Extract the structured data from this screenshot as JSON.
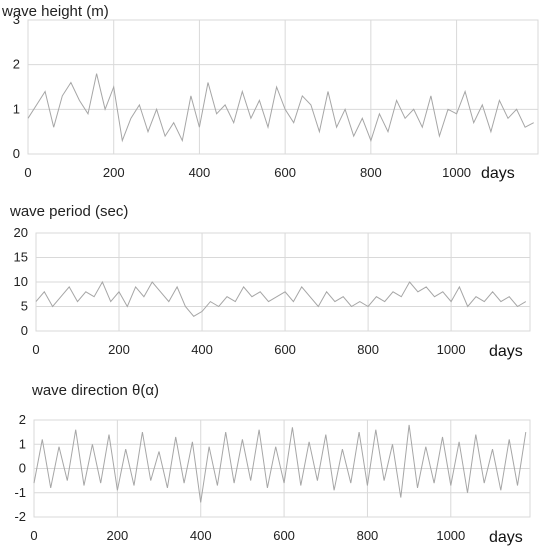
{
  "chart_data": [
    {
      "type": "line",
      "title": "wave height (m)",
      "xlabel": "days",
      "ylabel": "",
      "xlim": [
        0,
        1190
      ],
      "ylim": [
        0,
        3
      ],
      "x_ticks": [
        0,
        200,
        400,
        600,
        800,
        1000
      ],
      "y_ticks": [
        0,
        1,
        2,
        3
      ],
      "grid": true,
      "legend": "none",
      "color": "#a6a6a6",
      "x": [
        0,
        20,
        40,
        60,
        80,
        100,
        120,
        140,
        160,
        180,
        200,
        220,
        240,
        260,
        280,
        300,
        320,
        340,
        360,
        380,
        400,
        420,
        440,
        460,
        480,
        500,
        520,
        540,
        560,
        580,
        600,
        620,
        640,
        660,
        680,
        700,
        720,
        740,
        760,
        780,
        800,
        820,
        840,
        860,
        880,
        900,
        920,
        940,
        960,
        980,
        1000,
        1020,
        1040,
        1060,
        1080,
        1100,
        1120,
        1140,
        1160,
        1180
      ],
      "series": [
        {
          "values": [
            0.8,
            1.1,
            1.4,
            0.6,
            1.3,
            1.6,
            1.2,
            0.9,
            1.8,
            1.0,
            1.5,
            0.3,
            0.8,
            1.1,
            0.5,
            1.0,
            0.4,
            0.7,
            0.3,
            1.3,
            0.6,
            1.6,
            0.9,
            1.1,
            0.7,
            1.4,
            0.8,
            1.2,
            0.6,
            1.5,
            1.0,
            0.7,
            1.3,
            1.1,
            0.5,
            1.4,
            0.6,
            1.0,
            0.4,
            0.8,
            0.3,
            0.9,
            0.5,
            1.2,
            0.8,
            1.0,
            0.6,
            1.3,
            0.4,
            1.0,
            0.9,
            1.4,
            0.7,
            1.1,
            0.5,
            1.2,
            0.8,
            1.0,
            0.6,
            0.7
          ]
        }
      ]
    },
    {
      "type": "line",
      "title": "wave period (sec)",
      "xlabel": "days",
      "ylabel": "",
      "xlim": [
        0,
        1190
      ],
      "ylim": [
        0,
        20
      ],
      "x_ticks": [
        0,
        200,
        400,
        600,
        800,
        1000
      ],
      "y_ticks": [
        0,
        5,
        10,
        15,
        20
      ],
      "grid": true,
      "legend": "none",
      "color": "#a6a6a6",
      "x": [
        0,
        20,
        40,
        60,
        80,
        100,
        120,
        140,
        160,
        180,
        200,
        220,
        240,
        260,
        280,
        300,
        320,
        340,
        360,
        380,
        400,
        420,
        440,
        460,
        480,
        500,
        520,
        540,
        560,
        580,
        600,
        620,
        640,
        660,
        680,
        700,
        720,
        740,
        760,
        780,
        800,
        820,
        840,
        860,
        880,
        900,
        920,
        940,
        960,
        980,
        1000,
        1020,
        1040,
        1060,
        1080,
        1100,
        1120,
        1140,
        1160,
        1180
      ],
      "series": [
        {
          "values": [
            6,
            8,
            5,
            7,
            9,
            6,
            8,
            7,
            10,
            6,
            8,
            5,
            9,
            7,
            10,
            8,
            6,
            9,
            5,
            3,
            4,
            6,
            5,
            7,
            6,
            9,
            7,
            8,
            6,
            7,
            8,
            6,
            9,
            7,
            5,
            8,
            6,
            7,
            5,
            6,
            5,
            7,
            6,
            8,
            7,
            10,
            8,
            9,
            7,
            8,
            6,
            9,
            5,
            7,
            6,
            8,
            6,
            7,
            5,
            6
          ]
        }
      ]
    },
    {
      "type": "line",
      "title": "wave direction θ(α)",
      "xlabel": "days",
      "ylabel": "",
      "xlim": [
        0,
        1190
      ],
      "ylim": [
        -2,
        2
      ],
      "x_ticks": [
        0,
        200,
        400,
        600,
        800,
        1000
      ],
      "y_ticks": [
        -2,
        -1,
        0,
        1,
        2
      ],
      "grid": true,
      "legend": "none",
      "color": "#a6a6a6",
      "x": [
        0,
        20,
        40,
        60,
        80,
        100,
        120,
        140,
        160,
        180,
        200,
        220,
        240,
        260,
        280,
        300,
        320,
        340,
        360,
        380,
        400,
        420,
        440,
        460,
        480,
        500,
        520,
        540,
        560,
        580,
        600,
        620,
        640,
        660,
        680,
        700,
        720,
        740,
        760,
        780,
        800,
        820,
        840,
        860,
        880,
        900,
        920,
        940,
        960,
        980,
        1000,
        1020,
        1040,
        1060,
        1080,
        1100,
        1120,
        1140,
        1160,
        1180
      ],
      "series": [
        {
          "values": [
            -0.6,
            1.2,
            -0.8,
            0.9,
            -0.5,
            1.6,
            -0.7,
            1.0,
            -0.6,
            1.4,
            -0.9,
            0.8,
            -0.7,
            1.5,
            -0.5,
            0.7,
            -0.8,
            1.3,
            -0.6,
            1.1,
            -1.4,
            0.9,
            -0.7,
            1.5,
            -0.6,
            1.2,
            -0.5,
            1.6,
            -0.8,
            0.9,
            -0.6,
            1.7,
            -0.7,
            1.1,
            -0.5,
            1.4,
            -0.9,
            0.8,
            -0.6,
            1.5,
            -0.7,
            1.6,
            -0.5,
            1.0,
            -1.2,
            1.8,
            -0.8,
            0.9,
            -0.6,
            1.3,
            -0.7,
            1.1,
            -1.0,
            1.4,
            -0.6,
            0.8,
            -0.9,
            1.2,
            -0.7,
            1.5
          ]
        }
      ]
    }
  ]
}
